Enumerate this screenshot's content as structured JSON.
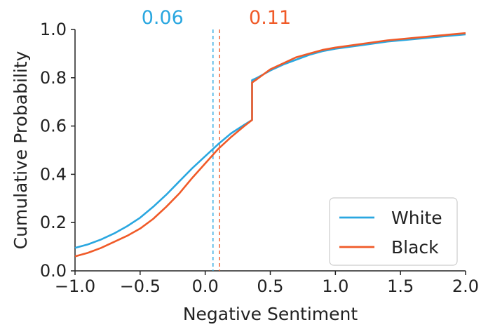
{
  "chart_data": {
    "type": "line",
    "title": "",
    "xlabel": "Negative Sentiment",
    "ylabel": "Cumulative Probability",
    "xlim": [
      -1.0,
      2.0
    ],
    "ylim": [
      0.0,
      1.0
    ],
    "x_ticks": [
      "−1.0",
      "−0.5",
      "0.0",
      "0.5",
      "1.0",
      "1.5",
      "2.0"
    ],
    "x_tick_values": [
      -1.0,
      -0.5,
      0.0,
      0.5,
      1.0,
      1.5,
      2.0
    ],
    "y_ticks": [
      "0.0",
      "0.2",
      "0.4",
      "0.6",
      "0.8",
      "1.0"
    ],
    "y_tick_values": [
      0.0,
      0.2,
      0.4,
      0.6,
      0.8,
      1.0
    ],
    "grid": false,
    "legend": {
      "placement": "bottom-right"
    },
    "series": [
      {
        "name": "White",
        "color": "#2aa7e0",
        "x": [
          -1.0,
          -0.9,
          -0.8,
          -0.7,
          -0.6,
          -0.5,
          -0.4,
          -0.3,
          -0.2,
          -0.1,
          0.0,
          0.1,
          0.2,
          0.3,
          0.36,
          0.36,
          0.4,
          0.5,
          0.6,
          0.7,
          0.8,
          0.9,
          1.0,
          1.2,
          1.4,
          1.6,
          1.8,
          2.0
        ],
        "y": [
          0.095,
          0.11,
          0.13,
          0.155,
          0.185,
          0.22,
          0.265,
          0.315,
          0.37,
          0.425,
          0.475,
          0.525,
          0.57,
          0.605,
          0.625,
          0.79,
          0.8,
          0.83,
          0.855,
          0.875,
          0.895,
          0.91,
          0.92,
          0.935,
          0.95,
          0.96,
          0.97,
          0.98
        ]
      },
      {
        "name": "Black",
        "color": "#f05a28",
        "x": [
          -1.0,
          -0.9,
          -0.8,
          -0.7,
          -0.6,
          -0.5,
          -0.4,
          -0.3,
          -0.2,
          -0.1,
          0.0,
          0.1,
          0.2,
          0.3,
          0.36,
          0.36,
          0.4,
          0.5,
          0.6,
          0.7,
          0.8,
          0.9,
          1.0,
          1.2,
          1.4,
          1.6,
          1.8,
          2.0
        ],
        "y": [
          0.06,
          0.075,
          0.095,
          0.12,
          0.145,
          0.175,
          0.215,
          0.265,
          0.32,
          0.385,
          0.445,
          0.505,
          0.555,
          0.6,
          0.625,
          0.78,
          0.795,
          0.835,
          0.86,
          0.885,
          0.9,
          0.915,
          0.925,
          0.94,
          0.955,
          0.965,
          0.975,
          0.985
        ]
      }
    ],
    "annotations": [
      {
        "label": "0.06",
        "x": 0.06,
        "color": "#2aa7e0",
        "linestyle": "dashed"
      },
      {
        "label": "0.11",
        "x": 0.11,
        "color": "#f05a28",
        "linestyle": "dashed"
      }
    ]
  }
}
